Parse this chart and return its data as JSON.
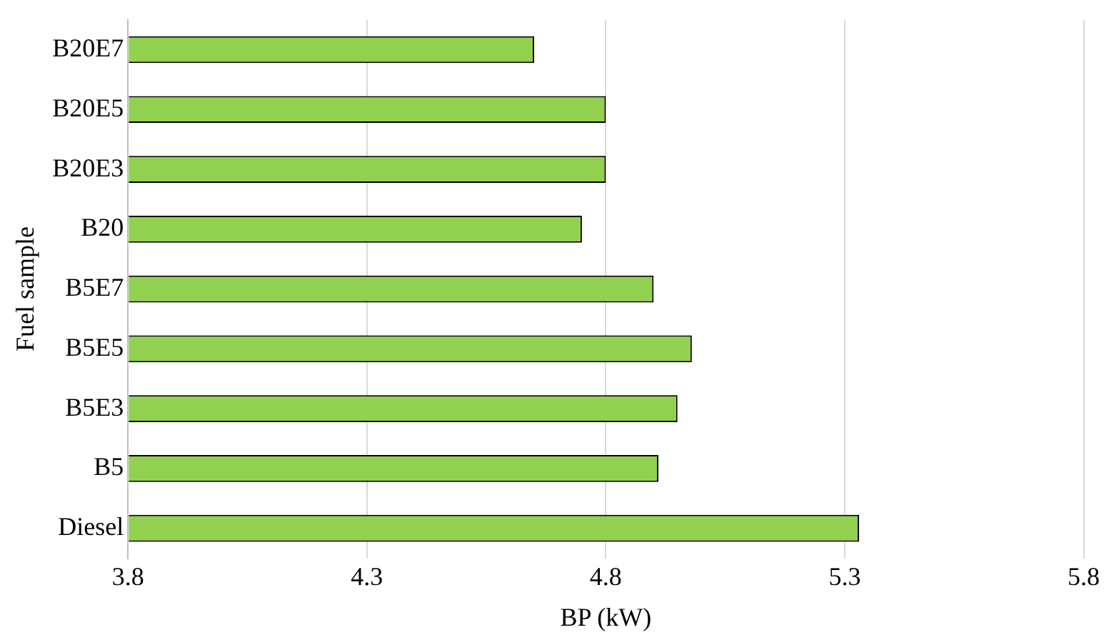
{
  "chart_data": {
    "type": "bar",
    "orientation": "horizontal",
    "xlabel": "BP (kW)",
    "ylabel": "Fuel sample",
    "categories": [
      "B20E7",
      "B20E5",
      "B20E3",
      "B20",
      "B5E7",
      "B5E5",
      "B5E3",
      "B5",
      "Diesel"
    ],
    "values": [
      4.65,
      4.8,
      4.8,
      4.75,
      4.9,
      4.98,
      4.95,
      4.91,
      5.33
    ],
    "color": "#92d050",
    "xlim": [
      3.8,
      5.8
    ],
    "xticks": [
      3.8,
      4.3,
      4.8,
      5.3,
      5.8
    ],
    "grid": "x",
    "legend": false
  }
}
